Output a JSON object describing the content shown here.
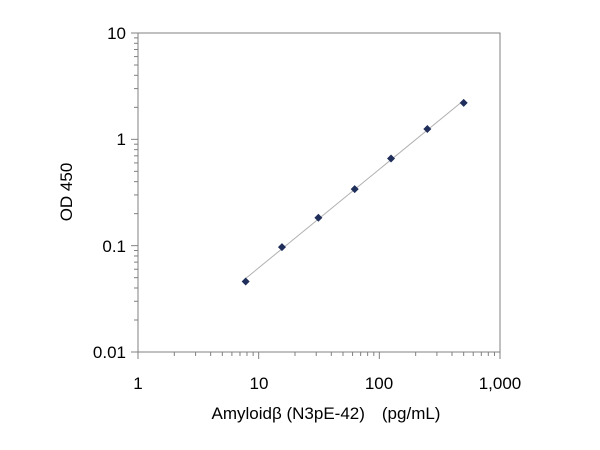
{
  "chart_data": {
    "type": "scatter",
    "title": "",
    "xlabel": "Amyloidβ (N3pE-42)　(pg/mL)",
    "ylabel": "OD 450",
    "x_scale": "log",
    "y_scale": "log",
    "xlim": [
      1,
      1000
    ],
    "ylim": [
      0.01,
      10
    ],
    "x_tick_labels": [
      "1",
      "10",
      "100",
      "1,000"
    ],
    "y_tick_labels": [
      "0.01",
      "0.1",
      "1",
      "10"
    ],
    "grid": false,
    "legend": "none",
    "trendline": "power fit",
    "series": [
      {
        "marker": "diamond",
        "points": [
          {
            "x": 7.8,
            "y": 0.046
          },
          {
            "x": 15.6,
            "y": 0.097
          },
          {
            "x": 31.25,
            "y": 0.183
          },
          {
            "x": 62.5,
            "y": 0.34
          },
          {
            "x": 125,
            "y": 0.66
          },
          {
            "x": 250,
            "y": 1.25
          },
          {
            "x": 500,
            "y": 2.2
          }
        ]
      }
    ],
    "colors": {
      "marker": "#1f2e5a",
      "trendline": "#b0b0b0",
      "axis": "#808080",
      "plot_border": "#808080"
    }
  }
}
